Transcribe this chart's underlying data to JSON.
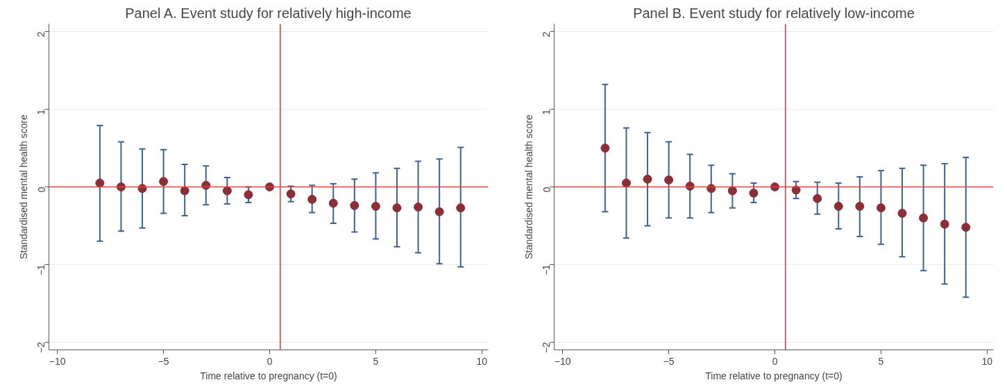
{
  "chart_data": [
    {
      "type": "scatter",
      "title": "Panel A. Event study for relatively high-income",
      "xlabel": "Time relative to pregnancy (t=0)",
      "ylabel": "Standardised mental health score",
      "x": [
        -8,
        -7,
        -6,
        -5,
        -4,
        -3,
        -2,
        -1,
        0,
        1,
        2,
        3,
        4,
        5,
        6,
        7,
        8,
        9
      ],
      "xlim": [
        -10.4,
        10.3
      ],
      "xticks": [
        -10,
        -5,
        0,
        5,
        10
      ],
      "ylim": [
        -2.1,
        2.1
      ],
      "yticks": [
        -2,
        -1,
        0,
        1,
        2
      ],
      "grid": "y",
      "marker": "circle",
      "series": [
        {
          "color": "#8b2e36",
          "values": [
            0.05,
            0.0,
            -0.02,
            0.07,
            -0.05,
            0.02,
            -0.05,
            -0.1,
            0.0,
            -0.09,
            -0.16,
            -0.21,
            -0.24,
            -0.25,
            -0.27,
            -0.26,
            -0.32,
            -0.27
          ],
          "errors": [
            [
              -0.7,
              0.79
            ],
            [
              -0.57,
              0.58
            ],
            [
              -0.53,
              0.49
            ],
            [
              -0.34,
              0.48
            ],
            [
              -0.37,
              0.29
            ],
            [
              -0.23,
              0.27
            ],
            [
              -0.22,
              0.12
            ],
            [
              -0.2,
              0.0
            ],
            null,
            [
              -0.19,
              0.01
            ],
            [
              -0.33,
              0.02
            ],
            [
              -0.47,
              0.04
            ],
            [
              -0.58,
              0.1
            ],
            [
              -0.67,
              0.18
            ],
            [
              -0.77,
              0.24
            ],
            [
              -0.85,
              0.33
            ],
            [
              -0.99,
              0.36
            ],
            [
              -1.03,
              0.51
            ]
          ]
        }
      ],
      "ref_lines": [
        {
          "axis": "y",
          "value": 0,
          "color": "#e8413c"
        },
        {
          "axis": "x",
          "value": 0.5,
          "color": "#d9343a"
        }
      ]
    },
    {
      "type": "scatter",
      "title": "Panel B. Event study for relatively low-income",
      "xlabel": "Time relative to pregnancy (t=0)",
      "ylabel": "Standardised mental health score",
      "x": [
        -8,
        -7,
        -6,
        -5,
        -4,
        -3,
        -2,
        -1,
        0,
        1,
        2,
        3,
        4,
        5,
        6,
        7,
        8,
        9
      ],
      "xlim": [
        -10.4,
        10.3
      ],
      "xticks": [
        -10,
        -5,
        0,
        5,
        10
      ],
      "ylim": [
        -2.1,
        2.1
      ],
      "yticks": [
        -2,
        -1,
        0,
        1,
        2
      ],
      "grid": "y",
      "marker": "circle",
      "series": [
        {
          "color": "#8b2e36",
          "values": [
            0.5,
            0.05,
            0.1,
            0.09,
            0.01,
            -0.02,
            -0.05,
            -0.08,
            0.0,
            -0.04,
            -0.15,
            -0.25,
            -0.25,
            -0.27,
            -0.34,
            -0.4,
            -0.48,
            -0.52
          ],
          "errors": [
            [
              -0.32,
              1.32
            ],
            [
              -0.66,
              0.76
            ],
            [
              -0.5,
              0.7
            ],
            [
              -0.4,
              0.58
            ],
            [
              -0.4,
              0.42
            ],
            [
              -0.33,
              0.28
            ],
            [
              -0.27,
              0.17
            ],
            [
              -0.2,
              0.05
            ],
            null,
            [
              -0.15,
              0.07
            ],
            [
              -0.35,
              0.06
            ],
            [
              -0.54,
              0.05
            ],
            [
              -0.64,
              0.13
            ],
            [
              -0.74,
              0.21
            ],
            [
              -0.9,
              0.24
            ],
            [
              -1.08,
              0.28
            ],
            [
              -1.25,
              0.3
            ],
            [
              -1.42,
              0.38
            ]
          ]
        }
      ],
      "ref_lines": [
        {
          "axis": "y",
          "value": 0,
          "color": "#e8413c"
        },
        {
          "axis": "x",
          "value": 0.5,
          "color": "#d9343a"
        }
      ]
    }
  ]
}
